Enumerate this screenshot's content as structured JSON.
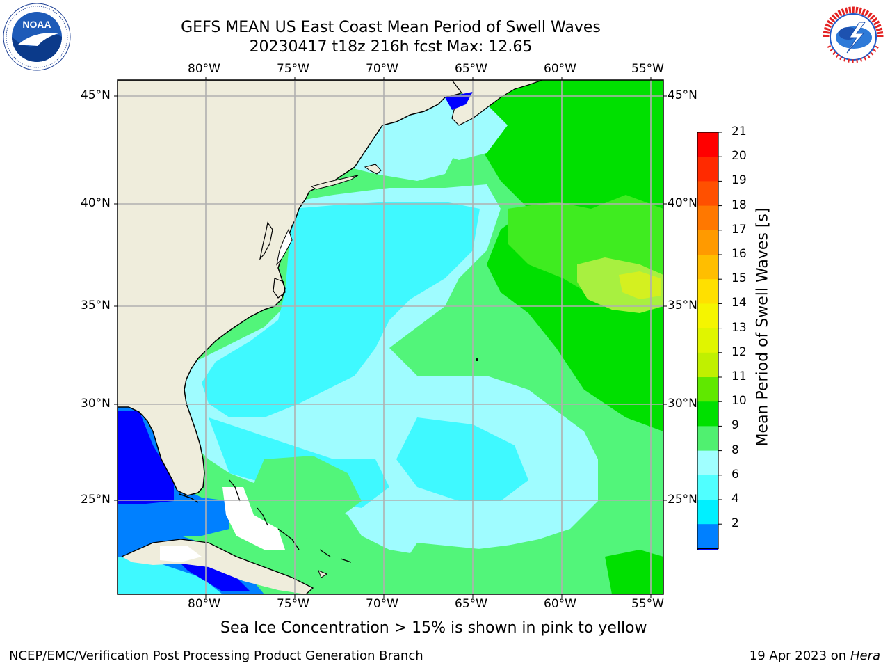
{
  "title": {
    "line1": "GEFS MEAN US East Coast Mean Period of Swell Waves",
    "line2": "20230417 t18z 216h fcst   Max: 12.65"
  },
  "map": {
    "lon_labels": [
      "80°W",
      "75°W",
      "70°W",
      "65°W",
      "60°W",
      "55°W"
    ],
    "lat_labels": [
      "45°N",
      "40°N",
      "35°N",
      "30°N",
      "25°N"
    ]
  },
  "colorbar": {
    "title": "Mean Period of Swell Waves [s]",
    "ticks": [
      "21",
      "20",
      "19",
      "18",
      "17",
      "16",
      "15",
      "14",
      "13",
      "12",
      "11",
      "10",
      "9",
      "8",
      "6",
      "4",
      "2"
    ],
    "colors": [
      "#ff0000",
      "#ff2a00",
      "#ff5000",
      "#ff7800",
      "#ff9a00",
      "#ffbe00",
      "#ffe000",
      "#f5f500",
      "#e0f500",
      "#c0f000",
      "#60e800",
      "#00e000",
      "#50f070",
      "#a0ffff",
      "#50ffff",
      "#00f0ff",
      "#0080ff"
    ],
    "extend_color": "#0000ff"
  },
  "caption": "Sea Ice Concentration > 15% is shown in pink to yellow",
  "footer": {
    "left": "NCEP/EMC/Verification Post Processing Product Generation Branch",
    "date": "19 Apr 2023 on",
    "machine": "Hera"
  },
  "logos": {
    "noaa": "NOAA",
    "nws": "NATIONAL WEATHER SERVICE"
  },
  "colors": {
    "land": "#efeddc",
    "ocean_light": "#9ffcff",
    "ocean_cyan": "#3ff9ff",
    "ocean_green": "#52f57a",
    "ocean_bright": "#00e000",
    "ocean_yellow": "#a8f040",
    "gulf_blue": "#0000ff",
    "gulf_mid": "#0080ff",
    "grid": "#b0b0b0"
  }
}
